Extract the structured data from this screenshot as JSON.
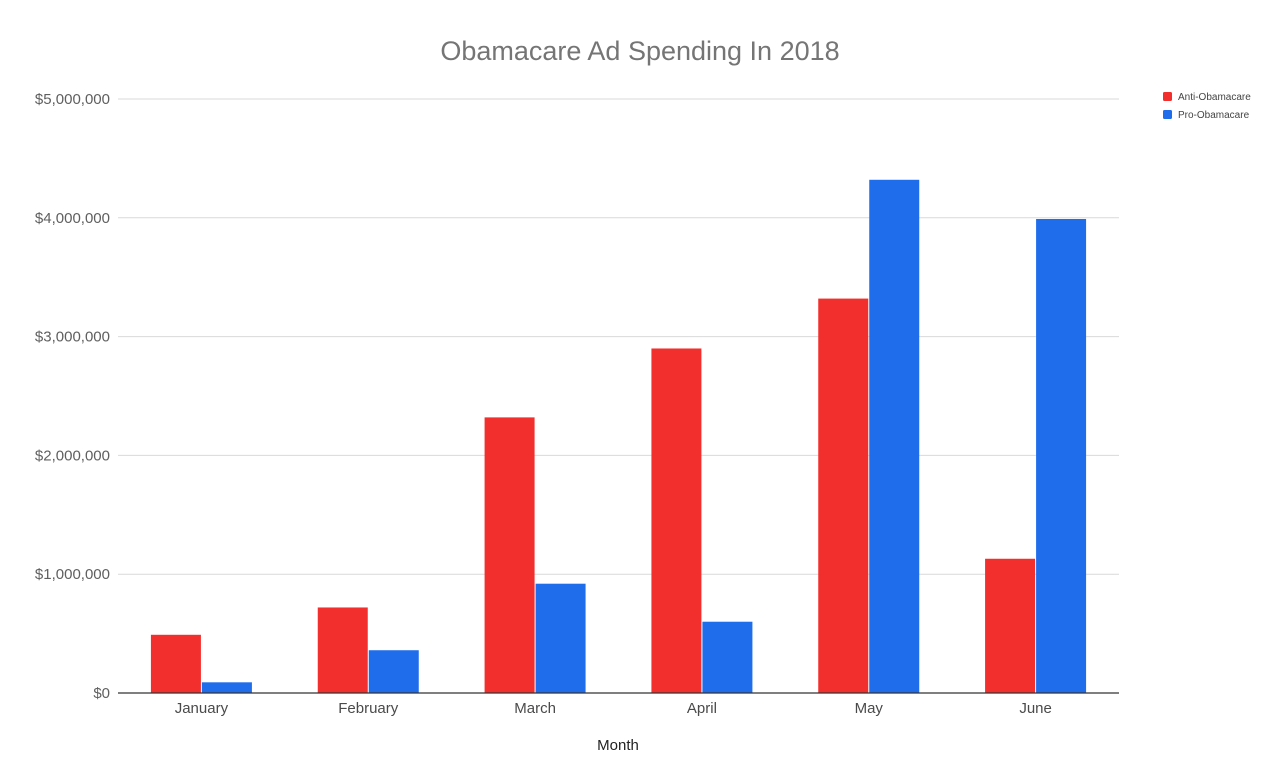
{
  "chart_data": {
    "type": "bar",
    "title": "Obamacare Ad Spending In 2018",
    "xlabel": "Month",
    "ylabel": "",
    "categories": [
      "January",
      "February",
      "March",
      "April",
      "May",
      "June"
    ],
    "series": [
      {
        "name": "Anti-Obamacare",
        "color": "#f22f2c",
        "values": [
          490000,
          720000,
          2320000,
          2900000,
          3320000,
          1130000
        ]
      },
      {
        "name": "Pro-Obamacare",
        "color": "#1f6deb",
        "values": [
          90000,
          360000,
          920000,
          600000,
          4320000,
          3990000
        ]
      }
    ],
    "ylim": [
      0,
      5000000
    ],
    "yticks": [
      0,
      1000000,
      2000000,
      3000000,
      4000000,
      5000000
    ],
    "ytick_labels": [
      "$0",
      "$1,000,000",
      "$2,000,000",
      "$3,000,000",
      "$4,000,000",
      "$5,000,000"
    ],
    "grid": true,
    "legend_position": "top-right"
  }
}
